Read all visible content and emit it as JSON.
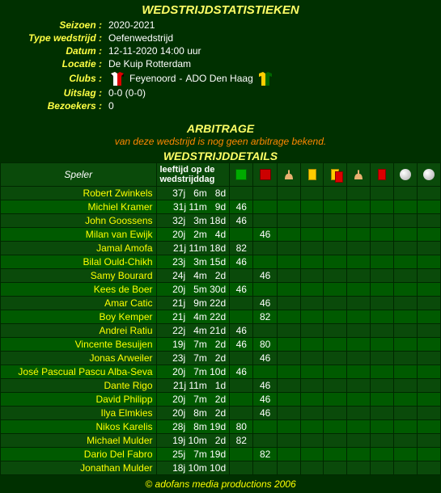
{
  "titles": {
    "main": "WEDSTRIJDSTATISTIEKEN",
    "arbitrage": "ARBITRAGE",
    "details": "WEDSTRIJDDETAILS"
  },
  "info": {
    "labels": {
      "seizoen": "Seizoen :",
      "type": "Type wedstrijd :",
      "datum": "Datum :",
      "locatie": "Locatie :",
      "clubs": "Clubs :",
      "uitslag": "Uitslag :",
      "bezoekers": "Bezoekers :"
    },
    "seizoen": "2020-2021",
    "type": "Oefenwedstrijd",
    "datum": "12-11-2020 14:00 uur",
    "locatie": "De Kuip Rotterdam",
    "club_home": "Feyenoord",
    "sep": " -  ",
    "club_away": "ADO Den Haag",
    "uitslag": "0-0 (0-0)",
    "bezoekers": "0"
  },
  "arbitrage": {
    "msg": "van deze wedstrijd is nog geen arbitrage bekend."
  },
  "columns": {
    "speler": "Speler",
    "leeftijd": "leeftijd op de wedstrijddag"
  },
  "footer": "© adofans media productions 2006",
  "players": [
    {
      "name": "Robert Zwinkels",
      "age": "37j   6m   8d",
      "v": [
        "",
        "",
        "",
        "",
        "",
        "",
        "",
        ""
      ]
    },
    {
      "name": "Michiel Kramer",
      "age": "31j 11m   9d",
      "v": [
        "46",
        "",
        "",
        "",
        "",
        "",
        "",
        ""
      ]
    },
    {
      "name": "John Goossens",
      "age": "32j   3m 18d",
      "v": [
        "46",
        "",
        "",
        "",
        "",
        "",
        "",
        ""
      ]
    },
    {
      "name": "Milan van Ewijk",
      "age": "20j   2m   4d",
      "v": [
        "",
        "46",
        "",
        "",
        "",
        "",
        "",
        ""
      ]
    },
    {
      "name": "Jamal Amofa",
      "age": "21j 11m 18d",
      "v": [
        "82",
        "",
        "",
        "",
        "",
        "",
        "",
        ""
      ]
    },
    {
      "name": "Bilal Ould-Chikh",
      "age": "23j   3m 15d",
      "v": [
        "46",
        "",
        "",
        "",
        "",
        "",
        "",
        ""
      ]
    },
    {
      "name": "Samy Bourard",
      "age": "24j   4m   2d",
      "v": [
        "",
        "46",
        "",
        "",
        "",
        "",
        "",
        ""
      ]
    },
    {
      "name": "Kees de Boer",
      "age": "20j   5m 30d",
      "v": [
        "46",
        "",
        "",
        "",
        "",
        "",
        "",
        ""
      ]
    },
    {
      "name": "Amar Catic",
      "age": "21j   9m 22d",
      "v": [
        "",
        "46",
        "",
        "",
        "",
        "",
        "",
        ""
      ]
    },
    {
      "name": "Boy Kemper",
      "age": "21j   4m 22d",
      "v": [
        "",
        "82",
        "",
        "",
        "",
        "",
        "",
        ""
      ]
    },
    {
      "name": "Andrei Ratiu",
      "age": "22j   4m 21d",
      "v": [
        "46",
        "",
        "",
        "",
        "",
        "",
        "",
        ""
      ]
    },
    {
      "name": "Vincente Besuijen",
      "age": "19j   7m   2d",
      "v": [
        "46",
        "80",
        "",
        "",
        "",
        "",
        "",
        ""
      ]
    },
    {
      "name": "Jonas Arweiler",
      "age": "23j   7m   2d",
      "v": [
        "",
        "46",
        "",
        "",
        "",
        "",
        "",
        ""
      ]
    },
    {
      "name": "José Pascual Pascu Alba-Seva",
      "age": "20j   7m 10d",
      "v": [
        "46",
        "",
        "",
        "",
        "",
        "",
        "",
        ""
      ]
    },
    {
      "name": "Dante Rigo",
      "age": "21j 11m   1d",
      "v": [
        "",
        "46",
        "",
        "",
        "",
        "",
        "",
        ""
      ]
    },
    {
      "name": "David Philipp",
      "age": "20j   7m   2d",
      "v": [
        "",
        "46",
        "",
        "",
        "",
        "",
        "",
        ""
      ]
    },
    {
      "name": "Ilya Elmkies",
      "age": "20j   8m   2d",
      "v": [
        "",
        "46",
        "",
        "",
        "",
        "",
        "",
        ""
      ]
    },
    {
      "name": "Nikos Karelis",
      "age": "28j   8m 19d",
      "v": [
        "80",
        "",
        "",
        "",
        "",
        "",
        "",
        ""
      ]
    },
    {
      "name": "Michael Mulder",
      "age": "19j 10m   2d",
      "v": [
        "82",
        "",
        "",
        "",
        "",
        "",
        "",
        ""
      ]
    },
    {
      "name": "Dario Del Fabro",
      "age": "25j   7m 19d",
      "v": [
        "",
        "82",
        "",
        "",
        "",
        "",
        "",
        ""
      ]
    },
    {
      "name": "Jonathan Mulder",
      "age": "18j 10m 10d",
      "v": [
        "",
        "",
        "",
        "",
        "",
        "",
        "",
        ""
      ]
    }
  ],
  "jerseys": {
    "home": {
      "left": "#ffffff",
      "right": "#dd0000",
      "sleeve": "#000000"
    },
    "away": {
      "left": "#ffcc00",
      "right": "#006600",
      "sleeve": "#ffcc00"
    }
  }
}
